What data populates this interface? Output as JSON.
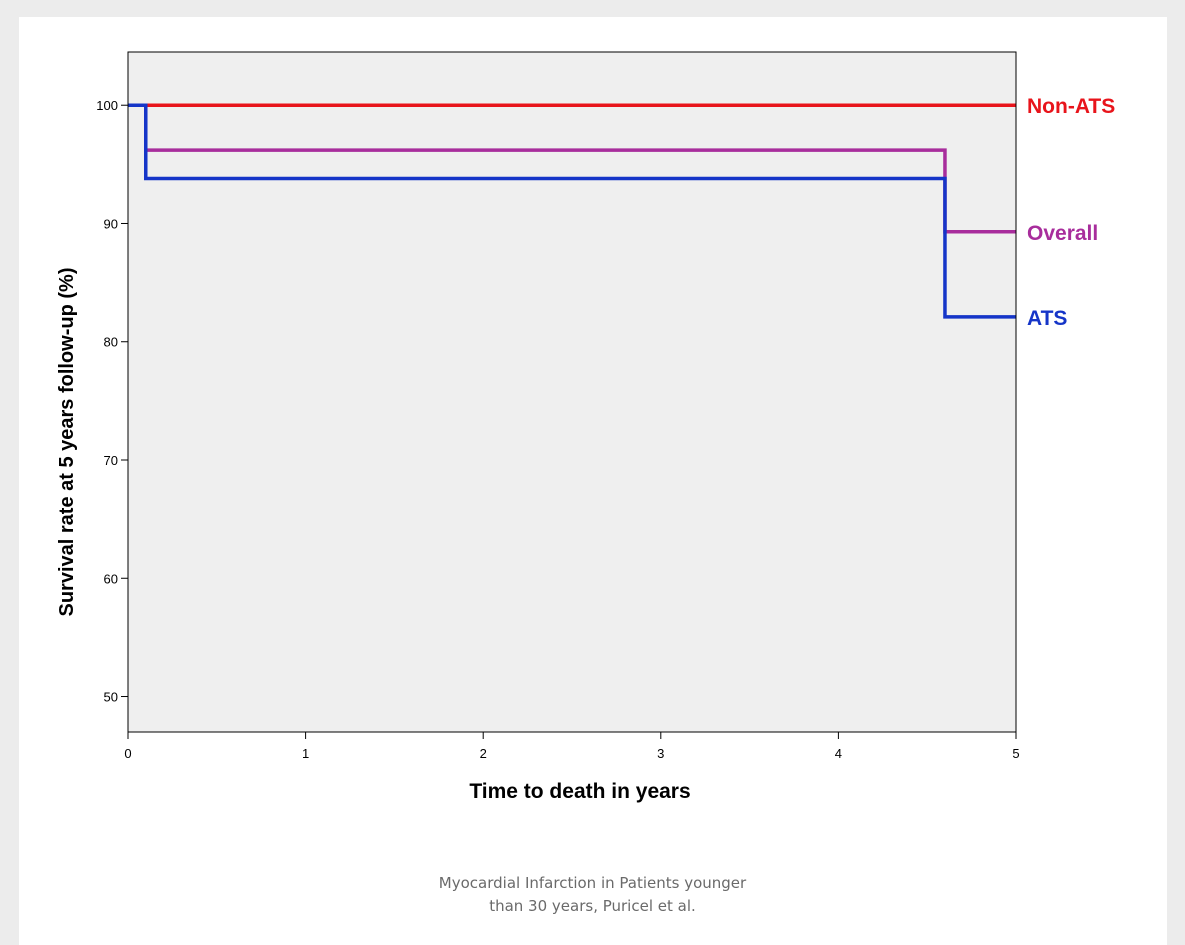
{
  "caption": {
    "line1": "Myocardial Infarction in Patients younger",
    "line2": "than 30 years, Puricel et al."
  },
  "chart_data": {
    "type": "line",
    "step": true,
    "title": "",
    "xlabel": "Time to death in years",
    "ylabel": "Survival rate at 5 years follow-up (%)",
    "xlim": [
      0,
      5
    ],
    "ylim": [
      47,
      104.5
    ],
    "xticks": [
      0,
      1,
      2,
      3,
      4,
      5
    ],
    "yticks": [
      50,
      60,
      70,
      80,
      90,
      100
    ],
    "grid": false,
    "plot_background": "#efefef",
    "series": [
      {
        "name": "Non-ATS",
        "color": "#e8141b",
        "x": [
          0,
          5
        ],
        "y": [
          100,
          100
        ]
      },
      {
        "name": "Overall",
        "color": "#a82d9c",
        "x": [
          0,
          0.1,
          4.6,
          5
        ],
        "y": [
          100,
          96.2,
          89.3,
          89.3
        ]
      },
      {
        "name": "ATS",
        "color": "#1535c8",
        "x": [
          0,
          0.1,
          4.6,
          5
        ],
        "y": [
          100,
          93.8,
          82.1,
          82.1
        ]
      }
    ]
  }
}
